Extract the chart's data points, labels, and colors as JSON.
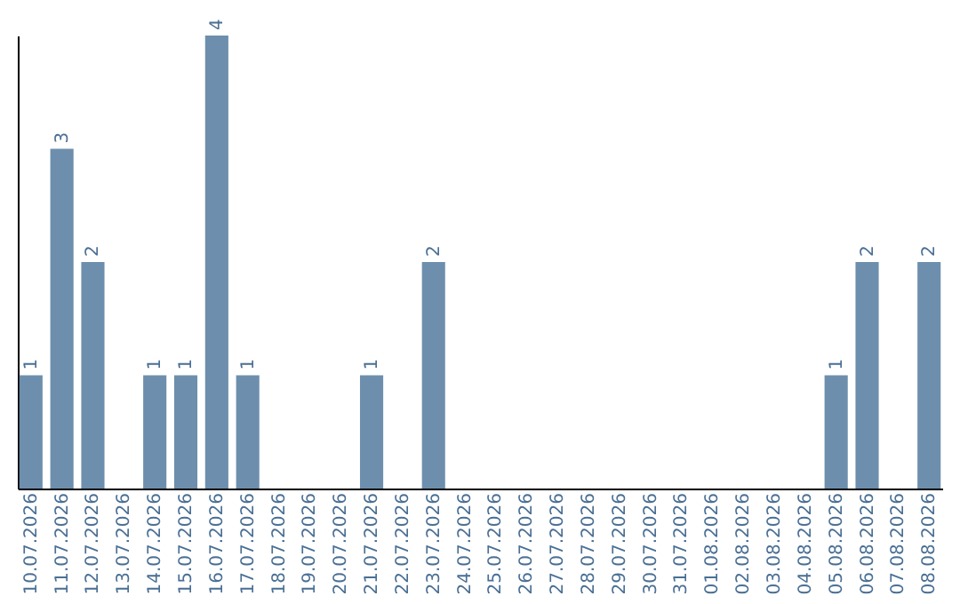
{
  "chart_data": {
    "type": "bar",
    "categories": [
      "10.07.2026",
      "11.07.2026",
      "12.07.2026",
      "13.07.2026",
      "14.07.2026",
      "15.07.2026",
      "16.07.2026",
      "17.07.2026",
      "18.07.2026",
      "19.07.2026",
      "20.07.2026",
      "21.07.2026",
      "22.07.2026",
      "23.07.2026",
      "24.07.2026",
      "25.07.2026",
      "26.07.2026",
      "27.07.2026",
      "28.07.2026",
      "29.07.2026",
      "30.07.2026",
      "31.07.2026",
      "01.08.2026",
      "02.08.2026",
      "03.08.2026",
      "04.08.2026",
      "05.08.2026",
      "06.08.2026",
      "07.08.2026",
      "08.08.2026"
    ],
    "values": [
      1,
      3,
      2,
      0,
      1,
      1,
      4,
      1,
      0,
      0,
      0,
      1,
      0,
      2,
      0,
      0,
      0,
      0,
      0,
      0,
      0,
      0,
      0,
      0,
      0,
      0,
      1,
      2,
      0,
      2
    ],
    "value_labels": [
      "1",
      "3",
      "2",
      null,
      "1",
      "1",
      "4",
      "1",
      null,
      null,
      null,
      "1",
      null,
      "2",
      null,
      null,
      null,
      null,
      null,
      null,
      null,
      null,
      null,
      null,
      null,
      null,
      "1",
      "2",
      null,
      "2"
    ],
    "color": "#6d8fad",
    "ylim": [
      0,
      4
    ],
    "tick_labels": "x",
    "grid": false
  }
}
